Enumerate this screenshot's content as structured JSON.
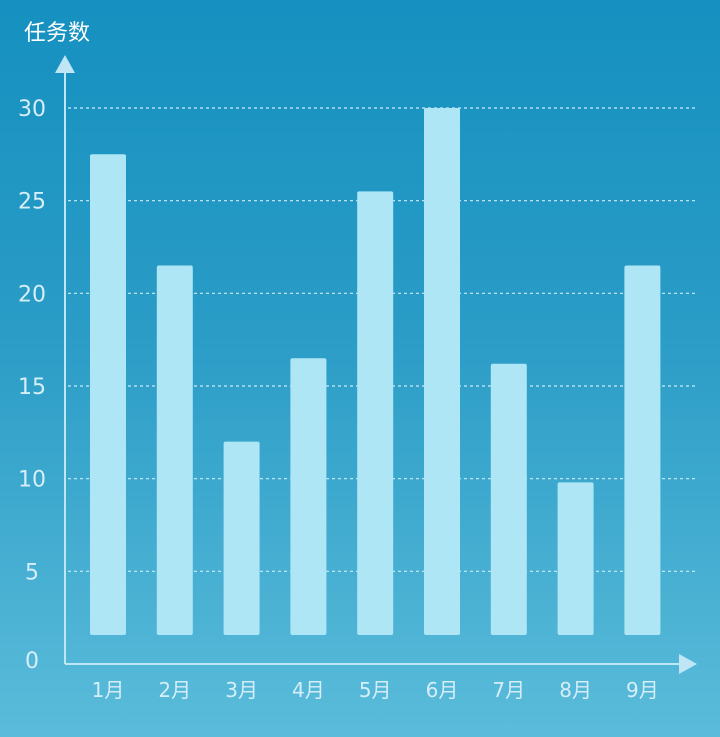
{
  "chart_data": {
    "type": "bar",
    "ylabel": "任务数",
    "xlabel": "",
    "categories": [
      "1月",
      "2月",
      "3月",
      "4月",
      "5月",
      "6月",
      "7月",
      "8月",
      "9月"
    ],
    "values": [
      27.5,
      21.5,
      12,
      16.5,
      25.5,
      30,
      16.2,
      9.8,
      21.5
    ],
    "ylim": [
      0,
      30
    ],
    "yticks": [
      "0",
      "5",
      "10",
      "15",
      "20",
      "25",
      "30"
    ],
    "grid": true,
    "colors": {
      "bar": "#aee6f5",
      "axis": "#bfe6f5",
      "grid": "#cdebf7"
    }
  }
}
